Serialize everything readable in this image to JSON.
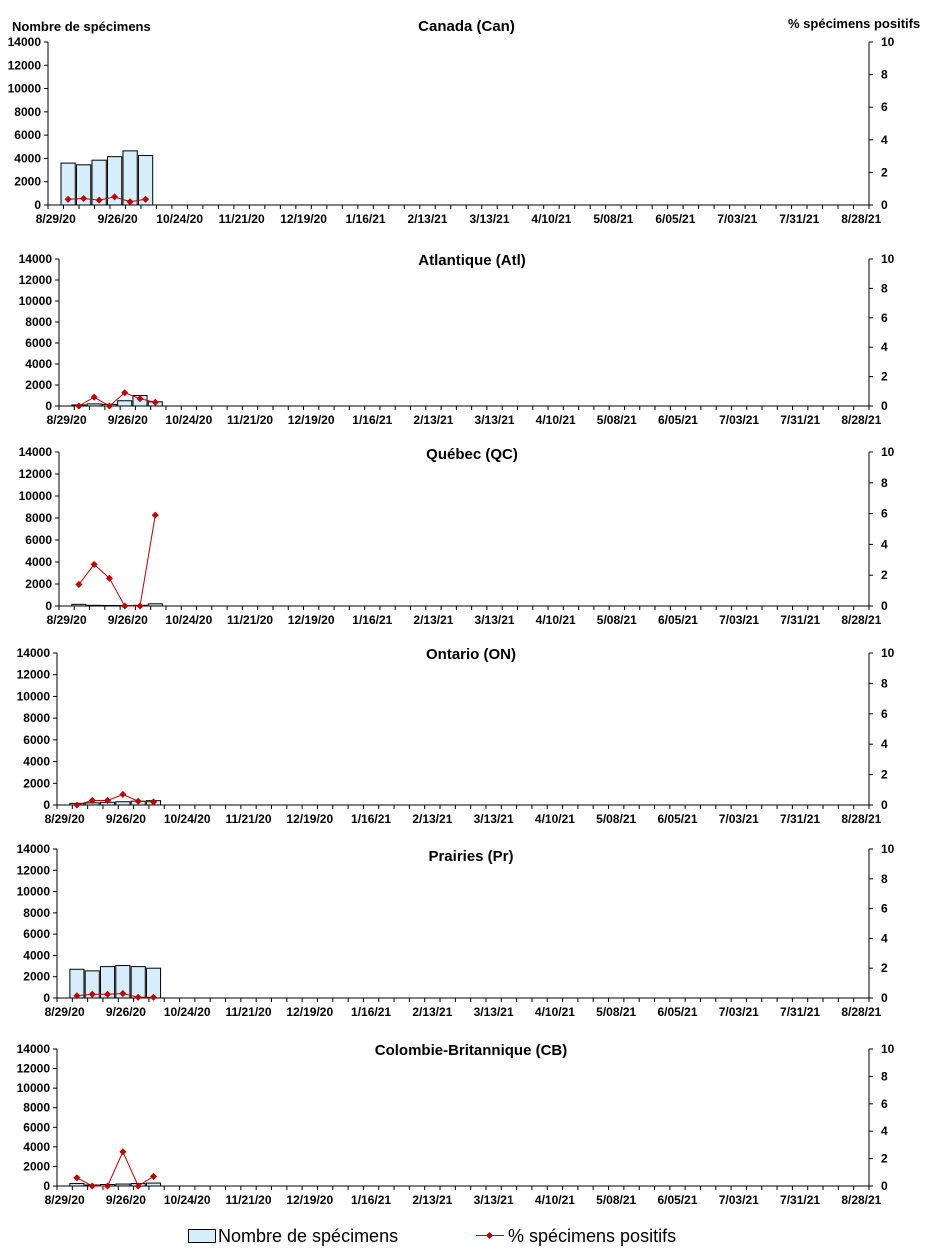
{
  "y_left_label": "Nombre de spécimens",
  "y_right_label": "% spécimens positifs",
  "x_tick_labels": [
    "8/29/20",
    "9/26/20",
    "10/24/20",
    "11/21/20",
    "12/19/20",
    "1/16/21",
    "2/13/21",
    "3/13/21",
    "4/10/21",
    "5/08/21",
    "6/05/21",
    "7/03/21",
    "7/31/21",
    "8/28/21"
  ],
  "legend": {
    "bars_label": "Nombre de spécimens",
    "line_label": "% spécimens positifs"
  },
  "colors": {
    "bar_fill": "#d6eefb",
    "bar_stroke": "#000000",
    "line": "#c00000"
  },
  "chart_data": [
    {
      "type": "bar",
      "title": "Canada (Can)",
      "x": [
        "8/29/20",
        "9/05/20",
        "9/12/20",
        "9/19/20",
        "9/26/20",
        "10/03/20"
      ],
      "series": [
        {
          "name": "Nombre de spécimens",
          "axis": "left",
          "values": [
            3600,
            3450,
            3850,
            4150,
            4650,
            4250
          ]
        },
        {
          "name": "% spécimens positifs",
          "axis": "right",
          "type": "line",
          "values": [
            0.35,
            0.4,
            0.3,
            0.5,
            0.2,
            0.35
          ]
        }
      ],
      "ylim_left": [
        0,
        14000
      ],
      "yticks_left": [
        0,
        2000,
        4000,
        6000,
        8000,
        10000,
        12000,
        14000
      ],
      "ylim_right": [
        0,
        10
      ],
      "yticks_right": [
        0,
        2,
        4,
        6,
        8,
        10
      ]
    },
    {
      "type": "bar",
      "title": "Atlantique (Atl)",
      "x": [
        "8/29/20",
        "9/05/20",
        "9/12/20",
        "9/19/20",
        "9/26/20",
        "10/03/20"
      ],
      "series": [
        {
          "name": "Nombre de spécimens",
          "axis": "left",
          "values": [
            100,
            200,
            150,
            500,
            1000,
            400
          ]
        },
        {
          "name": "% spécimens positifs",
          "axis": "right",
          "type": "line",
          "values": [
            0.0,
            0.6,
            0.0,
            0.9,
            0.5,
            0.25
          ]
        }
      ],
      "ylim_left": [
        0,
        14000
      ],
      "yticks_left": [
        0,
        2000,
        4000,
        6000,
        8000,
        10000,
        12000,
        14000
      ],
      "ylim_right": [
        0,
        10
      ],
      "yticks_right": [
        0,
        2,
        4,
        6,
        8,
        10
      ]
    },
    {
      "type": "bar",
      "title": "Québec (QC)",
      "x": [
        "8/29/20",
        "9/05/20",
        "9/12/20",
        "9/19/20",
        "9/26/20",
        "10/03/20"
      ],
      "series": [
        {
          "name": "Nombre de spécimens",
          "axis": "left",
          "values": [
            150,
            60,
            50,
            40,
            60,
            200
          ]
        },
        {
          "name": "% spécimens positifs",
          "axis": "right",
          "type": "line",
          "values": [
            1.4,
            2.7,
            1.8,
            0.0,
            0.0,
            5.9
          ]
        }
      ],
      "ylim_left": [
        0,
        14000
      ],
      "yticks_left": [
        0,
        2000,
        4000,
        6000,
        8000,
        10000,
        12000,
        14000
      ],
      "ylim_right": [
        0,
        10
      ],
      "yticks_right": [
        0,
        2,
        4,
        6,
        8,
        10
      ]
    },
    {
      "type": "bar",
      "title": "Ontario (ON)",
      "x": [
        "8/29/20",
        "9/05/20",
        "9/12/20",
        "9/19/20",
        "9/26/20",
        "10/03/20"
      ],
      "series": [
        {
          "name": "Nombre de spécimens",
          "axis": "left",
          "values": [
            150,
            200,
            250,
            300,
            350,
            400
          ]
        },
        {
          "name": "% spécimens positifs",
          "axis": "right",
          "type": "line",
          "values": [
            0.0,
            0.3,
            0.3,
            0.7,
            0.25,
            0.2
          ]
        }
      ],
      "ylim_left": [
        0,
        14000
      ],
      "yticks_left": [
        0,
        2000,
        4000,
        6000,
        8000,
        10000,
        12000,
        14000
      ],
      "ylim_right": [
        0,
        10
      ],
      "yticks_right": [
        0,
        2,
        4,
        6,
        8,
        10
      ]
    },
    {
      "type": "bar",
      "title": "Prairies (Pr)",
      "x": [
        "8/29/20",
        "9/05/20",
        "9/12/20",
        "9/19/20",
        "9/26/20",
        "10/03/20"
      ],
      "series": [
        {
          "name": "Nombre de spécimens",
          "axis": "left",
          "values": [
            2700,
            2550,
            2950,
            3050,
            2950,
            2800
          ]
        },
        {
          "name": "% spécimens positifs",
          "axis": "right",
          "type": "line",
          "values": [
            0.15,
            0.25,
            0.25,
            0.3,
            0.05,
            0.05
          ]
        }
      ],
      "ylim_left": [
        0,
        14000
      ],
      "yticks_left": [
        0,
        2000,
        4000,
        6000,
        8000,
        10000,
        12000,
        14000
      ],
      "ylim_right": [
        0,
        10
      ],
      "yticks_right": [
        0,
        2,
        4,
        6,
        8,
        10
      ]
    },
    {
      "type": "bar",
      "title": "Colombie-Britannique (CB)",
      "x": [
        "8/29/20",
        "9/05/20",
        "9/12/20",
        "9/19/20",
        "9/26/20",
        "10/03/20"
      ],
      "series": [
        {
          "name": "Nombre de spécimens",
          "axis": "left",
          "values": [
            250,
            100,
            150,
            200,
            250,
            300
          ]
        },
        {
          "name": "% spécimens positifs",
          "axis": "right",
          "type": "line",
          "values": [
            0.6,
            0.0,
            0.0,
            2.5,
            0.0,
            0.7
          ]
        }
      ],
      "ylim_left": [
        0,
        14000
      ],
      "yticks_left": [
        0,
        2000,
        4000,
        6000,
        8000,
        10000,
        12000,
        14000
      ],
      "ylim_right": [
        0,
        10
      ],
      "yticks_right": [
        0,
        2,
        4,
        6,
        8,
        10
      ]
    }
  ]
}
